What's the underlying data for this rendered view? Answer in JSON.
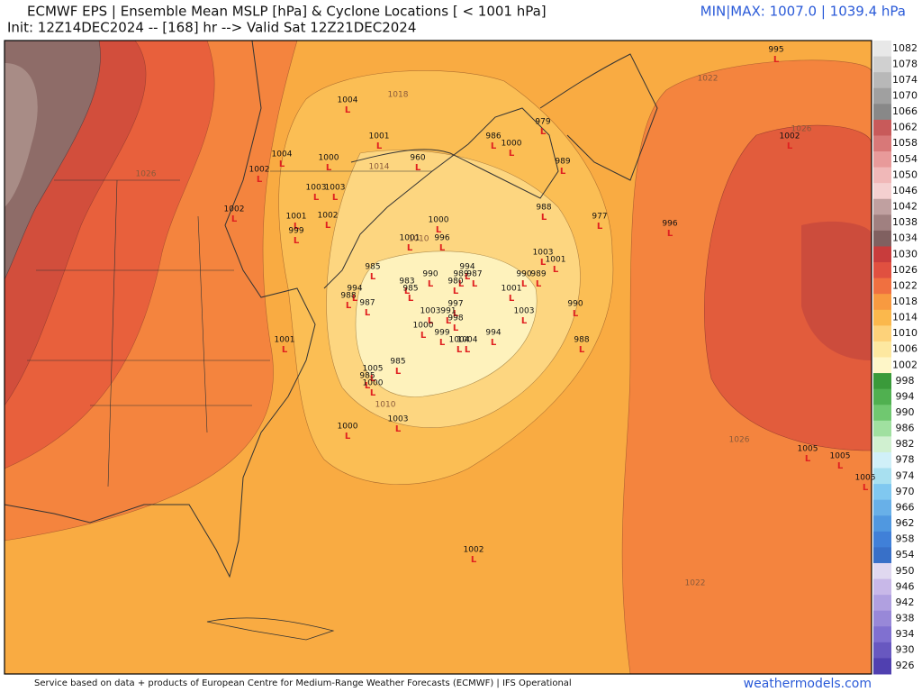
{
  "header": {
    "title": "ECMWF EPS | Ensemble Mean MSLP [hPa] & Cyclone Locations [ < 1001 hPa]",
    "init": "Init: 12Z14DEC2024 -- [168] hr --> Valid Sat 12Z21DEC2024",
    "minmax": "MIN|MAX: 1007.0 | 1039.4 hPa"
  },
  "colorbar": {
    "ticks": [
      1082,
      1078,
      1074,
      1070,
      1066,
      1062,
      1058,
      1054,
      1050,
      1046,
      1042,
      1038,
      1034,
      1030,
      1026,
      1022,
      1018,
      1014,
      1010,
      1006,
      1002,
      998,
      994,
      990,
      986,
      982,
      978,
      974,
      970,
      966,
      962,
      958,
      954,
      950,
      946,
      942,
      938,
      934,
      930,
      926
    ],
    "colors": [
      "#e8e8e8",
      "#d0d0d0",
      "#b8b8b8",
      "#a0a0a0",
      "#888888",
      "#c85a5a",
      "#d87878",
      "#e89a9a",
      "#f0b8b8",
      "#f4d0d0",
      "#c0a0a0",
      "#a08080",
      "#806060",
      "#c83c3c",
      "#e05040",
      "#f07040",
      "#f89a40",
      "#fbb84c",
      "#fdd27a",
      "#fde8a0",
      "#fef6c8",
      "#3a9a3a",
      "#50b050",
      "#70c870",
      "#a0e0a0",
      "#d0f0d0",
      "#d0f0f8",
      "#a8e0f0",
      "#80c8f0",
      "#68b0e8",
      "#5098e0",
      "#4080d8",
      "#3870c8",
      "#e0d8f0",
      "#c8b8e8",
      "#b0a0e0",
      "#9888d8",
      "#8070d0",
      "#6858c0",
      "#5040b0"
    ]
  },
  "contour_labels": [
    "1018",
    "1014",
    "1010",
    "1010",
    "1022",
    "1026",
    "1026",
    "1026",
    "1022"
  ],
  "cyclone_marker": "L",
  "cyclones": [
    995,
    1004,
    1001,
    986,
    1000,
    979,
    1000,
    1004,
    960,
    989,
    1002,
    1003,
    1003,
    1002,
    1001,
    1002,
    988,
    977,
    996,
    1002,
    1000,
    999,
    1001,
    996,
    1003,
    1001,
    985,
    994,
    990,
    989,
    987,
    990,
    989,
    983,
    980,
    985,
    1001,
    994,
    988,
    987,
    997,
    990,
    1003,
    991,
    1003,
    998,
    1000,
    999,
    994,
    1001,
    1004,
    1004,
    988,
    985,
    1005,
    985,
    1000,
    1003,
    1000,
    1005,
    1005,
    1005,
    1002
  ],
  "footer": {
    "credit": "Service based on data + products of European Centre for Medium-Range Weather Forecasts (ECMWF) | IFS Operational",
    "brand": "weathermodels.com"
  }
}
